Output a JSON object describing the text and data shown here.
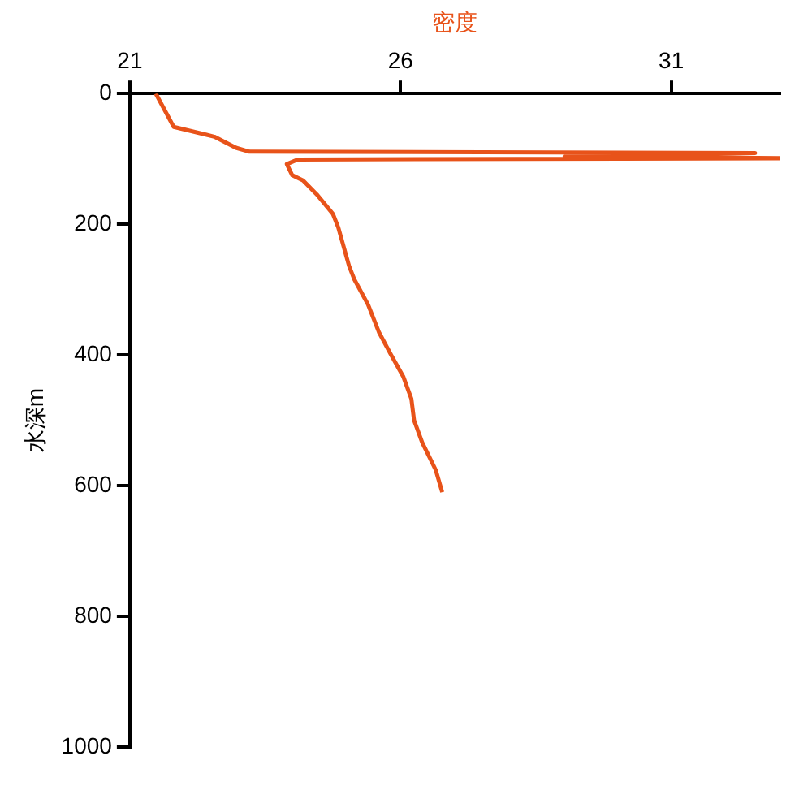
{
  "chart_data": {
    "type": "line",
    "xlabel": "密度",
    "ylabel": "水深m",
    "xlim": [
      21,
      33
    ],
    "xticks": [
      21,
      26,
      31
    ],
    "ylim": [
      1000,
      0
    ],
    "yticks": [
      0,
      200,
      400,
      600,
      800,
      1000
    ],
    "grid": false,
    "legend": false,
    "marker": "none",
    "line_style": "solid",
    "series": [
      {
        "color": "#e8531a",
        "x": [
          21.48,
          21.81,
          22.56,
          22.96,
          23.21,
          32.55,
          29.03,
          33.0,
          24.1,
          23.9,
          24.0,
          24.2,
          24.45,
          24.75,
          24.85,
          25.05,
          25.15,
          25.4,
          25.6,
          25.82,
          26.05,
          26.2,
          26.25,
          26.4,
          26.65,
          26.77
        ],
        "values": [
          0,
          51,
          66,
          83,
          89,
          91,
          96,
          99,
          101,
          108,
          125,
          133,
          154,
          184,
          205,
          264,
          285,
          323,
          365,
          399,
          433,
          467,
          500,
          534,
          576,
          610
        ]
      }
    ]
  }
}
